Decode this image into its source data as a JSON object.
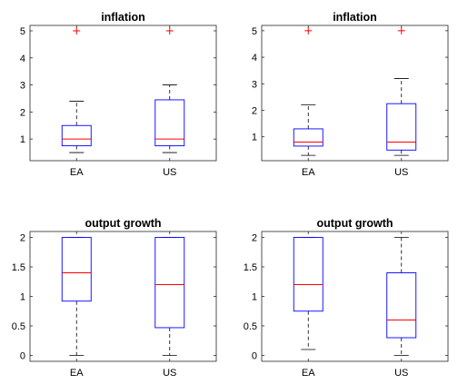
{
  "colors": {
    "box": "#0000ff",
    "median": "#ff0000",
    "whisker": "#000000",
    "outlier": "#ff0000",
    "axis": "#262626",
    "text": "#000000"
  },
  "chart_data": [
    {
      "type": "box",
      "title": "inflation",
      "categories": [
        "EA",
        "US"
      ],
      "ylim": [
        0.2,
        5.2
      ],
      "yticks": [
        "1",
        "2",
        "3",
        "4",
        "5"
      ],
      "ytick_values": [
        1,
        2,
        3,
        4,
        5
      ],
      "grid": false,
      "boxes": [
        {
          "category": "EA",
          "whisker_low": 0.5,
          "q1": 0.75,
          "median": 1.0,
          "q3": 1.5,
          "whisker_high": 2.4,
          "outliers": [
            5
          ]
        },
        {
          "category": "US",
          "whisker_low": 0.5,
          "q1": 0.75,
          "median": 1.0,
          "q3": 2.45,
          "whisker_high": 3.0,
          "outliers": [
            5
          ]
        }
      ]
    },
    {
      "type": "box",
      "title": "inflation",
      "categories": [
        "EA",
        "US"
      ],
      "ylim": [
        0.1,
        5.2
      ],
      "yticks": [
        "1",
        "2",
        "3",
        "4",
        "5"
      ],
      "ytick_values": [
        1,
        2,
        3,
        4,
        5
      ],
      "grid": false,
      "boxes": [
        {
          "category": "EA",
          "whisker_low": 0.3,
          "q1": 0.65,
          "median": 0.8,
          "q3": 1.3,
          "whisker_high": 2.2,
          "outliers": [
            5
          ]
        },
        {
          "category": "US",
          "whisker_low": 0.3,
          "q1": 0.5,
          "median": 0.8,
          "q3": 2.25,
          "whisker_high": 3.2,
          "outliers": [
            5
          ]
        }
      ]
    },
    {
      "type": "box",
      "title": "output growth",
      "categories": [
        "EA",
        "US"
      ],
      "ylim": [
        -0.1,
        2.1
      ],
      "yticks": [
        "0",
        "0.5",
        "1",
        "1.5",
        "2"
      ],
      "ytick_values": [
        0,
        0.5,
        1,
        1.5,
        2
      ],
      "grid": false,
      "boxes": [
        {
          "category": "EA",
          "whisker_low": 0.0,
          "q1": 0.92,
          "median": 1.4,
          "q3": 2.0,
          "whisker_high": 2.0,
          "outliers": []
        },
        {
          "category": "US",
          "whisker_low": 0.0,
          "q1": 0.47,
          "median": 1.2,
          "q3": 2.0,
          "whisker_high": 2.0,
          "outliers": []
        }
      ]
    },
    {
      "type": "box",
      "title": "output growth",
      "categories": [
        "EA",
        "US"
      ],
      "ylim": [
        -0.1,
        2.1
      ],
      "yticks": [
        "0",
        "0.5",
        "1",
        "1.5",
        "2"
      ],
      "ytick_values": [
        0,
        0.5,
        1,
        1.5,
        2
      ],
      "grid": false,
      "boxes": [
        {
          "category": "EA",
          "whisker_low": 0.1,
          "q1": 0.75,
          "median": 1.2,
          "q3": 2.0,
          "whisker_high": 2.0,
          "outliers": []
        },
        {
          "category": "US",
          "whisker_low": 0.0,
          "q1": 0.3,
          "median": 0.6,
          "q3": 1.4,
          "whisker_high": 2.0,
          "outliers": []
        }
      ]
    }
  ]
}
